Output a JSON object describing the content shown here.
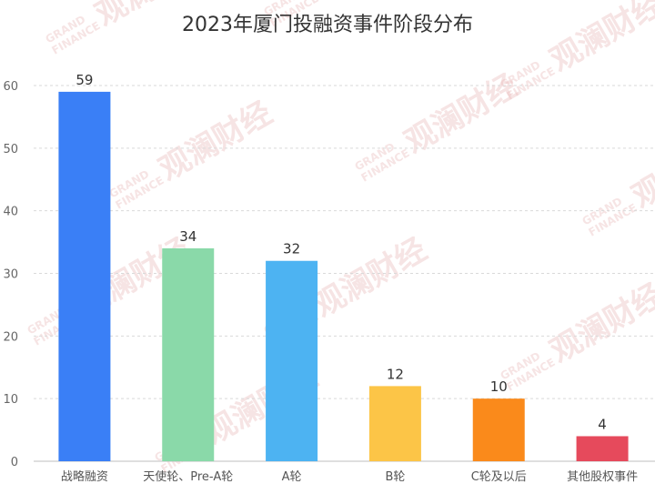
{
  "chart_data": {
    "type": "bar",
    "title": "2023年厦门投融资事件阶段分布",
    "categories": [
      "战略融资",
      "天使轮、Pre-A轮",
      "A轮",
      "B轮",
      "C轮及以后",
      "其他股权事件"
    ],
    "values": [
      59,
      34,
      32,
      12,
      10,
      4
    ],
    "colors": [
      "#3a7ff6",
      "#8ad9a9",
      "#4db3f2",
      "#fcc547",
      "#fa8a1b",
      "#e64a5c"
    ],
    "ylim": [
      0,
      60
    ],
    "yticks": [
      0,
      10,
      20,
      30,
      40,
      50,
      60
    ],
    "grid": true,
    "xlabel": "",
    "ylabel": ""
  },
  "watermark": {
    "cn": "观澜财经",
    "en1": "GRAND",
    "en2": "FINANCE"
  }
}
